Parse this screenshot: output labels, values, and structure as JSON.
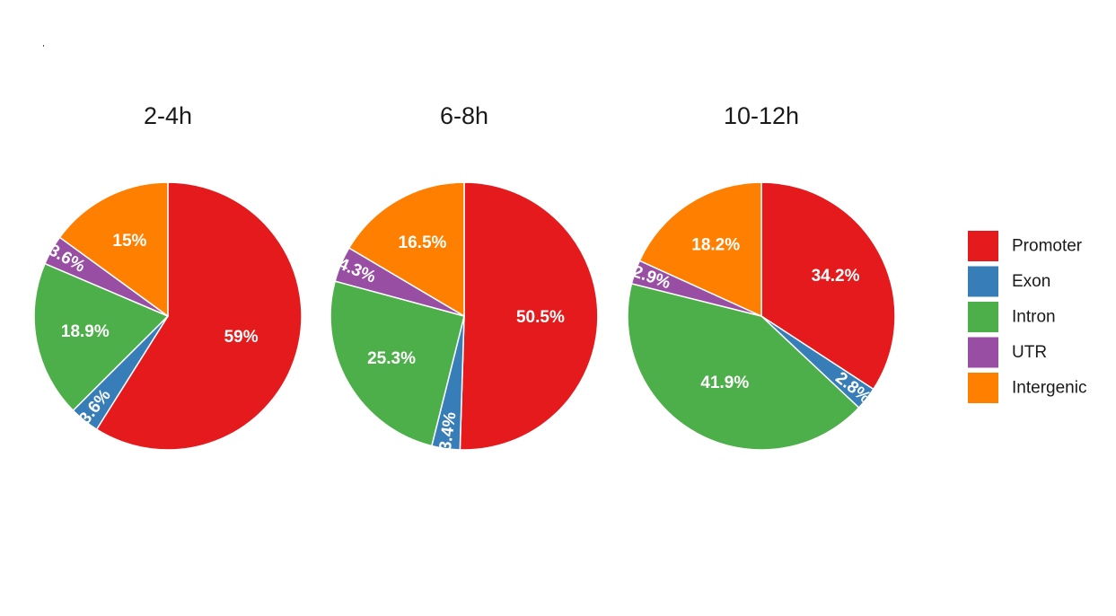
{
  "chart_data": [
    {
      "type": "pie",
      "title": "2-4h",
      "slices": [
        {
          "category": "Promoter",
          "value": 59,
          "label": "59%"
        },
        {
          "category": "Exon",
          "value": 3.6,
          "label": "3.6%"
        },
        {
          "category": "Intron",
          "value": 18.9,
          "label": "18.9%"
        },
        {
          "category": "UTR",
          "value": 3.6,
          "label": "3.6%"
        },
        {
          "category": "Intergenic",
          "value": 15,
          "label": "15%"
        }
      ]
    },
    {
      "type": "pie",
      "title": "6-8h",
      "slices": [
        {
          "category": "Promoter",
          "value": 50.5,
          "label": "50.5%"
        },
        {
          "category": "Exon",
          "value": 3.4,
          "label": "3.4%"
        },
        {
          "category": "Intron",
          "value": 25.3,
          "label": "25.3%"
        },
        {
          "category": "UTR",
          "value": 4.3,
          "label": "4.3%"
        },
        {
          "category": "Intergenic",
          "value": 16.5,
          "label": "16.5%"
        }
      ]
    },
    {
      "type": "pie",
      "title": "10-12h",
      "slices": [
        {
          "category": "Promoter",
          "value": 34.2,
          "label": "34.2%"
        },
        {
          "category": "Exon",
          "value": 2.8,
          "label": "2.8%"
        },
        {
          "category": "Intron",
          "value": 41.9,
          "label": "41.9%"
        },
        {
          "category": "UTR",
          "value": 2.9,
          "label": "2.9%"
        },
        {
          "category": "Intergenic",
          "value": 18.2,
          "label": "18.2%"
        }
      ]
    }
  ],
  "legend": {
    "position": "right",
    "items": [
      {
        "label": "Promoter",
        "color": "#e41a1c"
      },
      {
        "label": "Exon",
        "color": "#377eb8"
      },
      {
        "label": "Intron",
        "color": "#4daf4a"
      },
      {
        "label": "UTR",
        "color": "#984ea3"
      },
      {
        "label": "Intergenic",
        "color": "#ff7f00"
      }
    ]
  }
}
